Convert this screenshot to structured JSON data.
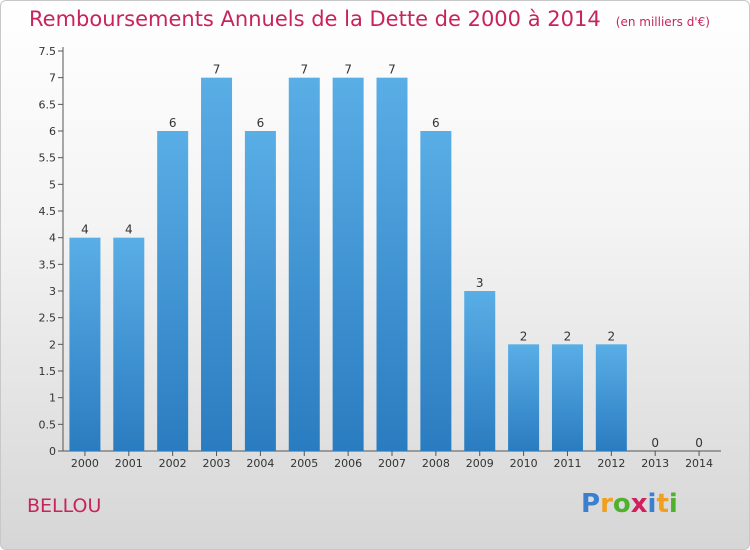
{
  "chart_data": {
    "type": "bar",
    "title": "Remboursements Annuels de la Dette de 2000 à 2014",
    "subtitle": "(en milliers d'€)",
    "categories": [
      "2000",
      "2001",
      "2002",
      "2003",
      "2004",
      "2005",
      "2006",
      "2007",
      "2008",
      "2009",
      "2010",
      "2011",
      "2012",
      "2013",
      "2014"
    ],
    "values": [
      4,
      4,
      6,
      7,
      6,
      7,
      7,
      7,
      6,
      3,
      2,
      2,
      2,
      0,
      0
    ],
    "data_labels": [
      "4",
      "4",
      "6",
      "7",
      "6",
      "7",
      "7",
      "7",
      "6",
      "3",
      "2",
      "2",
      "2",
      "0",
      "0"
    ],
    "y_ticks": [
      "0",
      "0.5",
      "1",
      "1.5",
      "2",
      "2.5",
      "3",
      "3.5",
      "4",
      "4.5",
      "5",
      "5.5",
      "6",
      "6.5",
      "7",
      "7.5"
    ],
    "ylim": [
      0,
      7.5
    ],
    "xlabel": "",
    "ylabel": "",
    "grid": false,
    "bar_color_top": "#5aaee6",
    "bar_color_bottom": "#2a7cc0",
    "title_color": "#c8245c"
  },
  "commune": "BELLOU",
  "logo": {
    "letters": [
      "P",
      "r",
      "o",
      "x",
      "i",
      "t",
      "i"
    ],
    "colors": [
      "#3a7fd0",
      "#f0a020",
      "#50b030",
      "#d02060",
      "#3a7fd0",
      "#f0a020",
      "#50b030"
    ]
  }
}
